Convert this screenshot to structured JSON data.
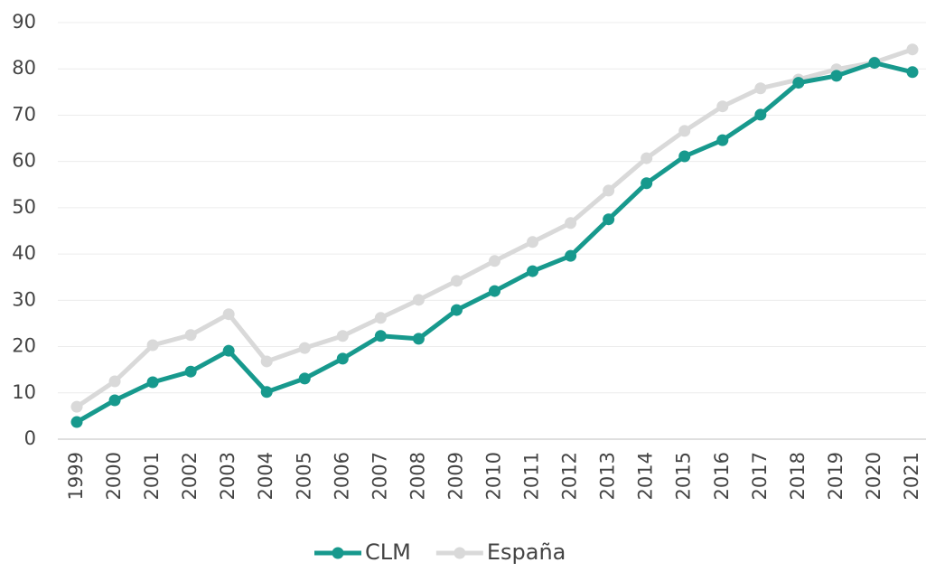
{
  "chart_data": {
    "type": "line",
    "categories": [
      "1999",
      "2000",
      "2001",
      "2002",
      "2003",
      "2004",
      "2005",
      "2006",
      "2007",
      "2008",
      "2009",
      "2010",
      "2011",
      "2012",
      "2013",
      "2014",
      "2015",
      "2016",
      "2017",
      "2018",
      "2019",
      "2020",
      "2021"
    ],
    "series": [
      {
        "name": "CLM",
        "color": "#17998d",
        "values": [
          3.7,
          8.4,
          12.3,
          14.6,
          19.1,
          10.2,
          13.1,
          17.4,
          22.3,
          21.7,
          27.9,
          32.0,
          36.3,
          39.6,
          47.5,
          55.3,
          61.1,
          64.6,
          70.1,
          77.0,
          78.5,
          81.3,
          79.3
        ]
      },
      {
        "name": "España",
        "color": "#d9d9d9",
        "values": [
          7.0,
          12.5,
          20.3,
          22.5,
          27.0,
          16.8,
          19.7,
          22.3,
          26.2,
          30.1,
          34.2,
          38.5,
          42.6,
          46.7,
          53.7,
          60.7,
          66.6,
          71.9,
          75.8,
          77.7,
          79.9,
          81.4,
          84.2
        ]
      }
    ],
    "ylim": [
      0,
      90
    ],
    "yticks": [
      0,
      10,
      20,
      30,
      40,
      50,
      60,
      70,
      80,
      90
    ],
    "grid": true,
    "legend": "bottom"
  }
}
